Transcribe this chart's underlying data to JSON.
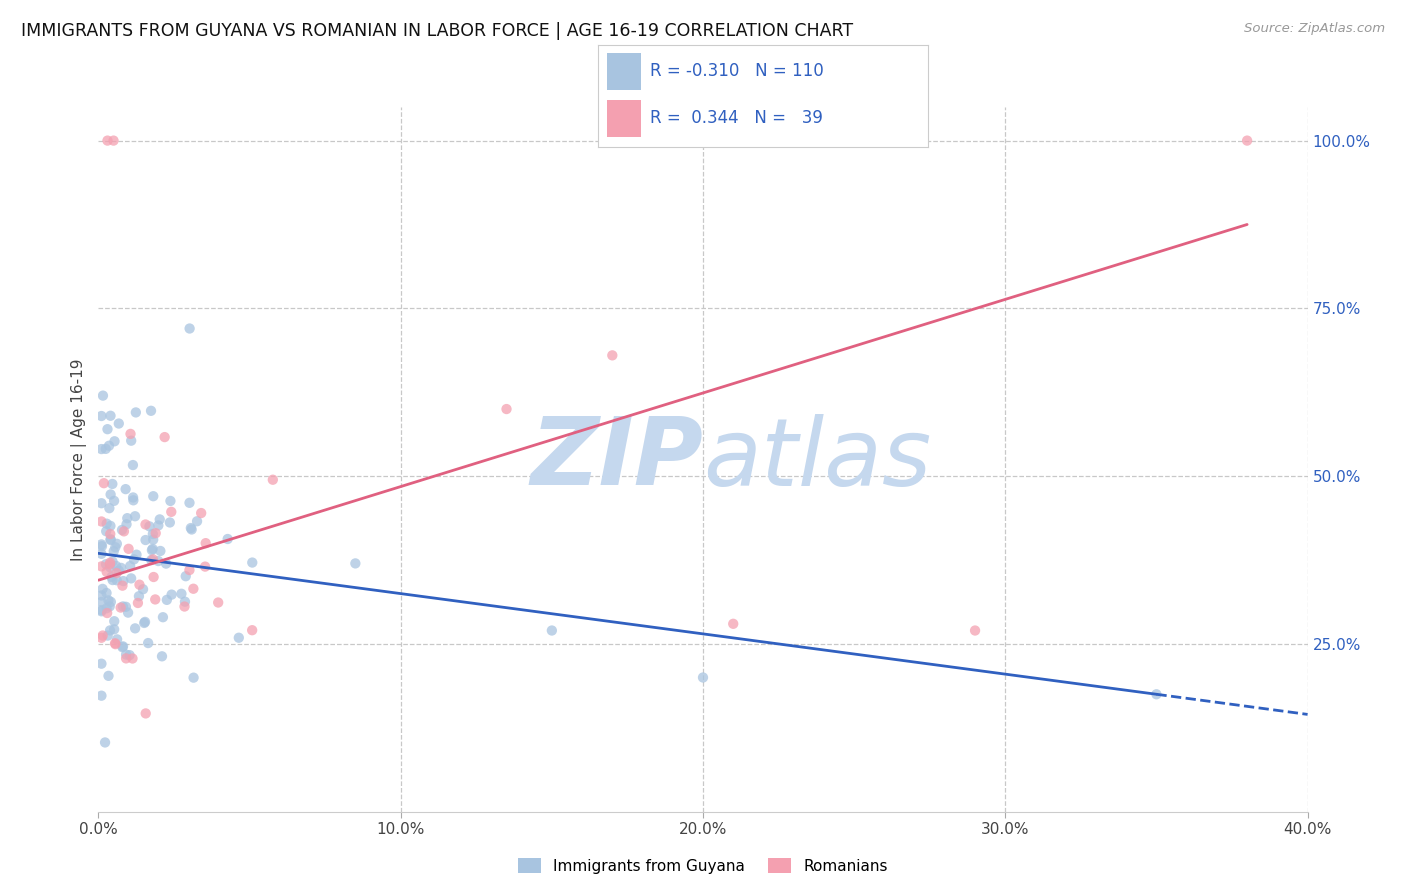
{
  "title": "IMMIGRANTS FROM GUYANA VS ROMANIAN IN LABOR FORCE | AGE 16-19 CORRELATION CHART",
  "source": "Source: ZipAtlas.com",
  "ylabel": "In Labor Force | Age 16-19",
  "xlim": [
    0.0,
    0.4
  ],
  "ylim": [
    0.0,
    1.05
  ],
  "xtick_labels": [
    "0.0%",
    "10.0%",
    "20.0%",
    "30.0%",
    "40.0%"
  ],
  "xtick_values": [
    0.0,
    0.1,
    0.2,
    0.3,
    0.4
  ],
  "ytick_labels": [
    "25.0%",
    "50.0%",
    "75.0%",
    "100.0%"
  ],
  "ytick_values": [
    0.25,
    0.5,
    0.75,
    1.0
  ],
  "guyana_color": "#a8c4e0",
  "romanian_color": "#f4a0b0",
  "guyana_line_color": "#3060c0",
  "romanian_line_color": "#e06080",
  "guyana_R": -0.31,
  "guyana_N": 110,
  "romanian_R": 0.344,
  "romanian_N": 39,
  "watermark_zip": "ZIP",
  "watermark_atlas": "atlas",
  "watermark_color": "#c5d8ee",
  "legend_label_guyana": "Immigrants from Guyana",
  "legend_label_romanian": "Romanians",
  "guyana_line_x0": 0.0,
  "guyana_line_y0": 0.385,
  "guyana_line_x1": 0.35,
  "guyana_line_y1": 0.175,
  "guyana_line_dash_x1": 0.4,
  "guyana_line_dash_y1": 0.145,
  "romanian_line_x0": 0.0,
  "romanian_line_y0": 0.345,
  "romanian_line_x1": 0.38,
  "romanian_line_y1": 0.875
}
